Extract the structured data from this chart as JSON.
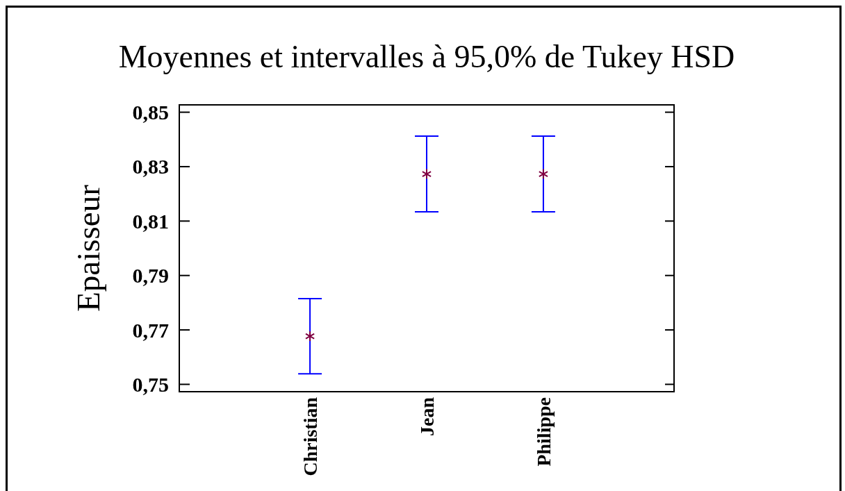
{
  "chart_data": {
    "type": "scatter",
    "title": "Moyennes et intervalles à 95,0% de Tukey HSD",
    "ylabel": "Epaisseur",
    "categories": [
      "Christian",
      "Jean",
      "Philippe"
    ],
    "series": [
      {
        "color": "#800040",
        "values": [
          0.7677,
          0.8273,
          0.8273
        ],
        "errors": [
          0.0138,
          0.0139,
          0.0139
        ]
      }
    ],
    "marker": "cross",
    "ylim": [
      0.7473,
      0.8527
    ],
    "yticks": [
      {
        "value": 0.75,
        "label": "0,75"
      },
      {
        "value": 0.77,
        "label": "0,77"
      },
      {
        "value": 0.79,
        "label": "0,79"
      },
      {
        "value": 0.81,
        "label": "0,81"
      },
      {
        "value": 0.83,
        "label": "0,83"
      },
      {
        "value": 0.85,
        "label": "0,85"
      }
    ]
  }
}
